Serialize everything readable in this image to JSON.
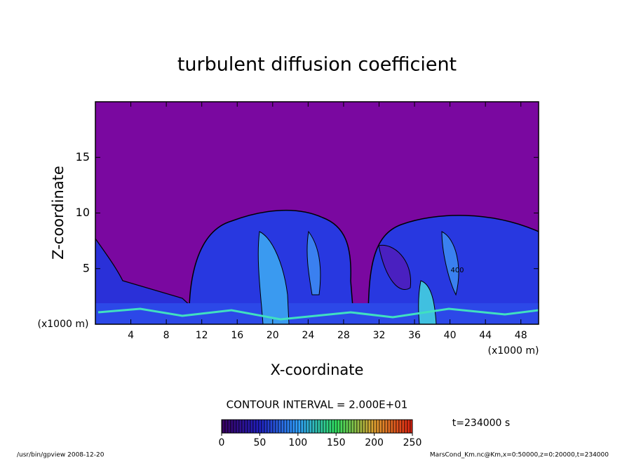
{
  "chart_data": {
    "type": "contour",
    "title": "turbulent diffusion coefficient",
    "xlabel": "X-coordinate",
    "ylabel": "Z-coordinate",
    "xunit": "(x1000 m)",
    "yunit": "(x1000 m)",
    "xlim": [
      0,
      50
    ],
    "ylim": [
      0,
      20
    ],
    "xticks": [
      4,
      8,
      12,
      16,
      20,
      24,
      28,
      32,
      36,
      40,
      44,
      48
    ],
    "yticks": [
      5,
      10,
      15
    ],
    "contour_label": "400",
    "contour_interval": "CONTOUR INTERVAL = 2.000E+01",
    "colorbar": {
      "lim": [
        0,
        250
      ],
      "ticks": [
        0,
        50,
        100,
        150,
        200,
        250
      ]
    },
    "time_label": "t=234000 s",
    "footer_left": "/usr/bin/gpview   2008-12-20",
    "footer_right": "MarsCond_Km.nc@Km,x=0:50000,z=0:20000,t=234000"
  }
}
